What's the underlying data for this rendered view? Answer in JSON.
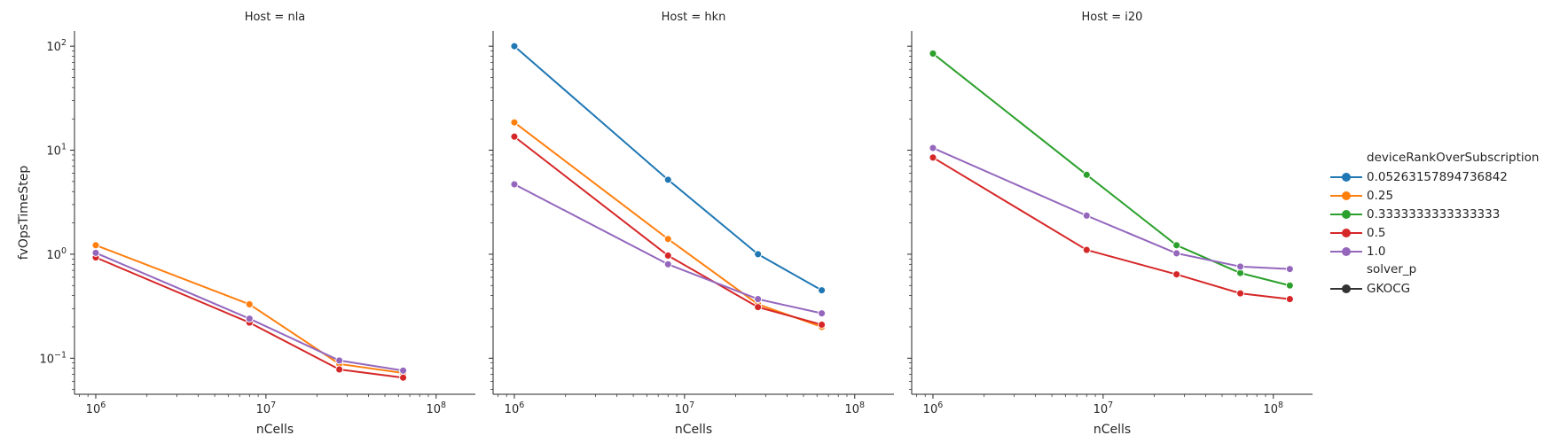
{
  "chart_data": [
    {
      "type": "line",
      "title": "Host = nla",
      "xlabel": "nCells",
      "ylabel": "fvOpsTimeStep",
      "xscale": "log",
      "yscale": "log",
      "xlim": [
        750000,
        170000000
      ],
      "ylim": [
        0.045,
        140
      ],
      "xticks": [
        1000000,
        10000000,
        100000000
      ],
      "xtick_labels": [
        {
          "base": "10",
          "exp": "6"
        },
        {
          "base": "10",
          "exp": "7"
        },
        {
          "base": "10",
          "exp": "8"
        }
      ],
      "yticks": [
        0.1,
        1,
        10,
        100
      ],
      "ytick_labels": [
        {
          "base": "10",
          "exp": "−1"
        },
        {
          "base": "10",
          "exp": "0"
        },
        {
          "base": "10",
          "exp": "1"
        },
        {
          "base": "10",
          "exp": "2"
        }
      ],
      "series": [
        {
          "name": "0.25",
          "color": "#ff7f0e",
          "x": [
            1000000,
            8000000,
            27000000,
            64000000
          ],
          "y": [
            1.22,
            0.33,
            0.088,
            0.072
          ]
        },
        {
          "name": "0.5",
          "color": "#d62728",
          "x": [
            1000000,
            8000000,
            27000000,
            64000000
          ],
          "y": [
            0.93,
            0.22,
            0.078,
            0.065
          ]
        },
        {
          "name": "1.0",
          "color": "#9467bd",
          "x": [
            1000000,
            8000000,
            27000000,
            64000000
          ],
          "y": [
            1.03,
            0.24,
            0.095,
            0.076
          ]
        }
      ]
    },
    {
      "type": "line",
      "title": "Host = hkn",
      "xlabel": "nCells",
      "ylabel": "",
      "xscale": "log",
      "yscale": "log",
      "xlim": [
        750000,
        170000000
      ],
      "ylim": [
        0.045,
        140
      ],
      "xticks": [
        1000000,
        10000000,
        100000000
      ],
      "xtick_labels": [
        {
          "base": "10",
          "exp": "6"
        },
        {
          "base": "10",
          "exp": "7"
        },
        {
          "base": "10",
          "exp": "8"
        }
      ],
      "yticks": [
        0.1,
        1,
        10,
        100
      ],
      "series": [
        {
          "name": "0.05263157894736842",
          "color": "#1f77b4",
          "x": [
            1000000,
            8000000,
            27000000,
            64000000
          ],
          "y": [
            100,
            5.2,
            1.0,
            0.45
          ]
        },
        {
          "name": "0.25",
          "color": "#ff7f0e",
          "x": [
            1000000,
            8000000,
            27000000,
            64000000
          ],
          "y": [
            18.5,
            1.4,
            0.33,
            0.2
          ]
        },
        {
          "name": "0.5",
          "color": "#d62728",
          "x": [
            1000000,
            8000000,
            27000000,
            64000000
          ],
          "y": [
            13.5,
            0.97,
            0.31,
            0.21
          ]
        },
        {
          "name": "1.0",
          "color": "#9467bd",
          "x": [
            1000000,
            8000000,
            27000000,
            64000000
          ],
          "y": [
            4.7,
            0.8,
            0.37,
            0.27
          ]
        }
      ]
    },
    {
      "type": "line",
      "title": "Host = i20",
      "xlabel": "nCells",
      "ylabel": "",
      "xscale": "log",
      "yscale": "log",
      "xlim": [
        750000,
        170000000
      ],
      "ylim": [
        0.045,
        140
      ],
      "xticks": [
        1000000,
        10000000,
        100000000
      ],
      "xtick_labels": [
        {
          "base": "10",
          "exp": "6"
        },
        {
          "base": "10",
          "exp": "7"
        },
        {
          "base": "10",
          "exp": "8"
        }
      ],
      "yticks": [
        0.1,
        1,
        10,
        100
      ],
      "series": [
        {
          "name": "0.3333333333333333",
          "color": "#2ca02c",
          "x": [
            1000000,
            8000000,
            27000000,
            64000000,
            125000000
          ],
          "y": [
            85,
            5.8,
            1.22,
            0.66,
            0.5
          ]
        },
        {
          "name": "0.5",
          "color": "#d62728",
          "x": [
            1000000,
            8000000,
            27000000,
            64000000,
            125000000
          ],
          "y": [
            8.5,
            1.1,
            0.64,
            0.42,
            0.37
          ]
        },
        {
          "name": "1.0",
          "color": "#9467bd",
          "x": [
            1000000,
            8000000,
            27000000,
            64000000,
            125000000
          ],
          "y": [
            10.5,
            2.35,
            1.02,
            0.76,
            0.72
          ]
        }
      ]
    }
  ],
  "legend": {
    "placement": "right",
    "hue_title": "deviceRankOverSubscription",
    "hue_entries": [
      {
        "label": "0.05263157894736842",
        "color": "#1f77b4"
      },
      {
        "label": "0.25",
        "color": "#ff7f0e"
      },
      {
        "label": "0.3333333333333333",
        "color": "#2ca02c"
      },
      {
        "label": "0.5",
        "color": "#d62728"
      },
      {
        "label": "1.0",
        "color": "#9467bd"
      }
    ],
    "style_title": "solver_p",
    "style_entries": [
      {
        "label": "GKOCG",
        "color": "#333333"
      }
    ]
  }
}
